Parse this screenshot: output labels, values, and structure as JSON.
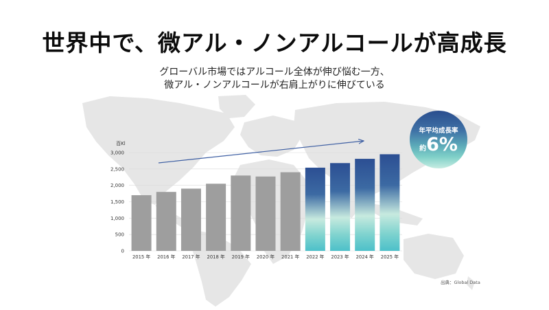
{
  "title": "世界中で、微アル・ノンアルコールが高成長",
  "subtitle": {
    "line1": "グローバル市場ではアルコール全体が伸び悩む一方、",
    "line2": "微アル・ノンアルコールが右肩上がりに伸びている"
  },
  "badge": {
    "label": "年平均成長率",
    "prefix": "約",
    "value": "6%"
  },
  "source": "出典：Global Data",
  "colors": {
    "historical_bar": "#9e9e9e",
    "forecast_top": "#2c4f93",
    "forecast_bottom": "#4cc0c9",
    "trend_arrow": "#3e5fa3",
    "map": "#e6e6e6",
    "grid": "#d9d9d9"
  },
  "chart_data": {
    "type": "bar",
    "ylabel": "百Kl",
    "ylim": [
      0,
      3000
    ],
    "yticks": [
      "0",
      "500",
      "1,000",
      "1,500",
      "2,000",
      "2,500",
      "3,000"
    ],
    "categories": [
      "2015 年",
      "2016 年",
      "2017 年",
      "2018 年",
      "2019 年",
      "2020 年",
      "2021 年",
      "2022 年",
      "2023 年",
      "2024 年",
      "2025 年"
    ],
    "values": [
      1700,
      1800,
      1900,
      2050,
      2300,
      2270,
      2400,
      2540,
      2680,
      2810,
      2950
    ],
    "forecast_from_index": 7,
    "grid": true,
    "trend_arrow": true
  }
}
